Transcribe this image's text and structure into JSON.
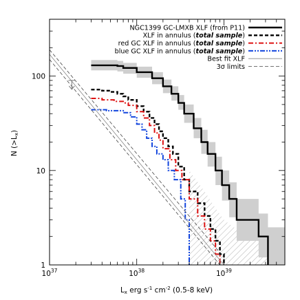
{
  "chart_data": {
    "type": "line",
    "title": "",
    "xlabel": "L_x erg s^-1 cm^-2 (0.5-8 keV)",
    "xlabel_parts": {
      "base": "L",
      "base_sub": "x",
      "mid1": " erg s",
      "sup1": "-1",
      "mid2": " cm",
      "sup2": "-2",
      "tail": " (0.5-8 keV)"
    },
    "ylabel": "N (>L_x)",
    "ylabel_parts": {
      "head": "N (>L",
      "sub": "x",
      "tail": ")"
    },
    "xscale": "log",
    "yscale": "log",
    "xlim": [
      1e+37,
      5e+39
    ],
    "ylim": [
      1,
      400
    ],
    "x_tick_labels": [
      {
        "value": 1e+37,
        "base": "10",
        "exp": "37"
      },
      {
        "value": 1e+38,
        "base": "10",
        "exp": "38"
      },
      {
        "value": 1e+39,
        "base": "10",
        "exp": "39"
      }
    ],
    "y_tick_labels": [
      {
        "value": 1,
        "text": "1"
      },
      {
        "value": 10,
        "text": "10"
      },
      {
        "value": 100,
        "text": "100"
      }
    ],
    "legend_position": "top-right",
    "legend": [
      {
        "key": "p11",
        "parts": [
          {
            "t": "NGC1399 GC-LMXB XLF (from P11)"
          }
        ]
      },
      {
        "key": "annulus",
        "parts": [
          {
            "t": "XLF in annulus ("
          },
          {
            "t": "total sample",
            "style": "bi"
          },
          {
            "t": ")"
          }
        ]
      },
      {
        "key": "red",
        "parts": [
          {
            "t": "red GC XLF in annulus ("
          },
          {
            "t": "total sample",
            "style": "bi"
          },
          {
            "t": ")"
          }
        ]
      },
      {
        "key": "blue",
        "parts": [
          {
            "t": "blue GC XLF in annulus ("
          },
          {
            "t": "total sample",
            "style": "bi"
          },
          {
            "t": ")"
          }
        ]
      },
      {
        "key": "bestfit",
        "parts": [
          {
            "t": "Best fit XLF"
          }
        ]
      },
      {
        "key": "sigma",
        "parts": [
          {
            "t": "3σ limits"
          }
        ]
      }
    ],
    "series": [
      {
        "key": "p11",
        "name": "NGC1399 GC-LMXB XLF (from P11)",
        "color": "#000000",
        "style": "solid-thick",
        "step_x": [
          3e+37,
          6e+37,
          7e+37,
          1e+38,
          1.5e+38,
          2e+38,
          2.5e+38,
          3e+38,
          3.5e+38,
          4.5e+38,
          5.5e+38,
          6.5e+38,
          8e+38,
          9.5e+38,
          1.15e+39,
          1.4e+39,
          1.7e+39,
          2.5e+39,
          3.2e+39
        ],
        "step_y": [
          130,
          128,
          122,
          110,
          95,
          78,
          65,
          52,
          40,
          28,
          20,
          15,
          10,
          7,
          5,
          3,
          3,
          2,
          1
        ],
        "band_y_low": [
          115,
          112,
          106,
          96,
          82,
          66,
          55,
          44,
          32,
          22,
          15,
          11,
          7,
          4.8,
          3.2,
          1.8,
          1.8,
          1.2,
          1
        ],
        "band_y_high": [
          148,
          145,
          138,
          126,
          110,
          92,
          78,
          63,
          50,
          36,
          27,
          20,
          14,
          10,
          7.5,
          5,
          5,
          3.5,
          2.5
        ]
      },
      {
        "key": "annulus",
        "name": "XLF in annulus (total sample)",
        "color": "#000000",
        "style": "dashed",
        "step_x": [
          3e+37,
          4e+37,
          5e+37,
          6e+37,
          7e+37,
          8e+37,
          1e+38,
          1.2e+38,
          1.4e+38,
          1.6e+38,
          1.8e+38,
          2e+38,
          2.3e+38,
          2.6e+38,
          3e+38,
          3.5e+38,
          4e+38,
          5e+38,
          6e+38,
          7e+38,
          8e+38,
          9e+38,
          1e+39
        ],
        "step_y": [
          72,
          70,
          68,
          65,
          61,
          56,
          48,
          42,
          36,
          31,
          26,
          22,
          18,
          15,
          11,
          8,
          6,
          4.5,
          3.3,
          2.4,
          1.8,
          1.3,
          1
        ]
      },
      {
        "key": "red",
        "name": "red GC XLF in annulus (total sample)",
        "color": "#dd1111",
        "style": "dashdot",
        "step_x": [
          3e+37,
          4e+37,
          5.5e+37,
          7e+37,
          8e+37,
          1e+38,
          1.2e+38,
          1.4e+38,
          1.6e+38,
          1.8e+38,
          2e+38,
          2.4e+38,
          2.8e+38,
          3.3e+38,
          4e+38,
          5e+38,
          6e+38,
          7e+38,
          8e+38,
          9e+38
        ],
        "step_y": [
          58,
          56,
          54,
          52,
          49,
          42,
          36,
          30,
          25,
          21,
          17,
          13,
          10,
          8,
          5,
          3.3,
          2.4,
          1.8,
          1.3,
          1
        ]
      },
      {
        "key": "blue",
        "name": "blue GC XLF in annulus (total sample)",
        "color": "#1144dd",
        "style": "dashdotdot",
        "step_x": [
          3e+37,
          4.5e+37,
          7e+37,
          8.5e+37,
          1e+38,
          1.15e+38,
          1.3e+38,
          1.5e+38,
          1.7e+38,
          2e+38,
          2.3e+38,
          2.7e+38,
          3.2e+38,
          3.6e+38,
          4e+38
        ],
        "step_y": [
          44,
          43,
          41,
          37,
          31,
          27,
          22,
          18,
          15,
          13,
          10,
          8,
          5,
          3,
          2
        ]
      },
      {
        "key": "bestfit",
        "name": "Best fit XLF",
        "color": "#888888",
        "style": "solid-thin",
        "line_x": [
          1e+37,
          1e+39
        ],
        "line_y": [
          170,
          1
        ]
      },
      {
        "key": "sigma_hi",
        "name": "3σ limits",
        "color": "#444444",
        "style": "dashed-thin",
        "line_x": [
          1e+37,
          1e+39
        ],
        "line_y": [
          190,
          1.2
        ]
      },
      {
        "key": "sigma_lo",
        "name": "3σ limits",
        "color": "#444444",
        "style": "dashed-thin",
        "line_x": [
          1e+37,
          9e+38
        ],
        "line_y": [
          150,
          1
        ]
      }
    ],
    "upper_limit_marker": {
      "x": 1.8e+37,
      "y": 90
    },
    "hatched_region": {
      "x": [
        4e+38,
        6e+38,
        8e+38,
        1e+39,
        1.3e+39,
        1.8e+39,
        2.5e+39,
        3.5e+39,
        5e+39
      ],
      "y_low": [
        1,
        1,
        1,
        1,
        1,
        1,
        1,
        1,
        1
      ],
      "y_high": [
        10,
        6,
        4,
        3,
        2.5,
        2.3,
        2.2,
        2.0,
        1.9
      ]
    },
    "grid": false
  }
}
